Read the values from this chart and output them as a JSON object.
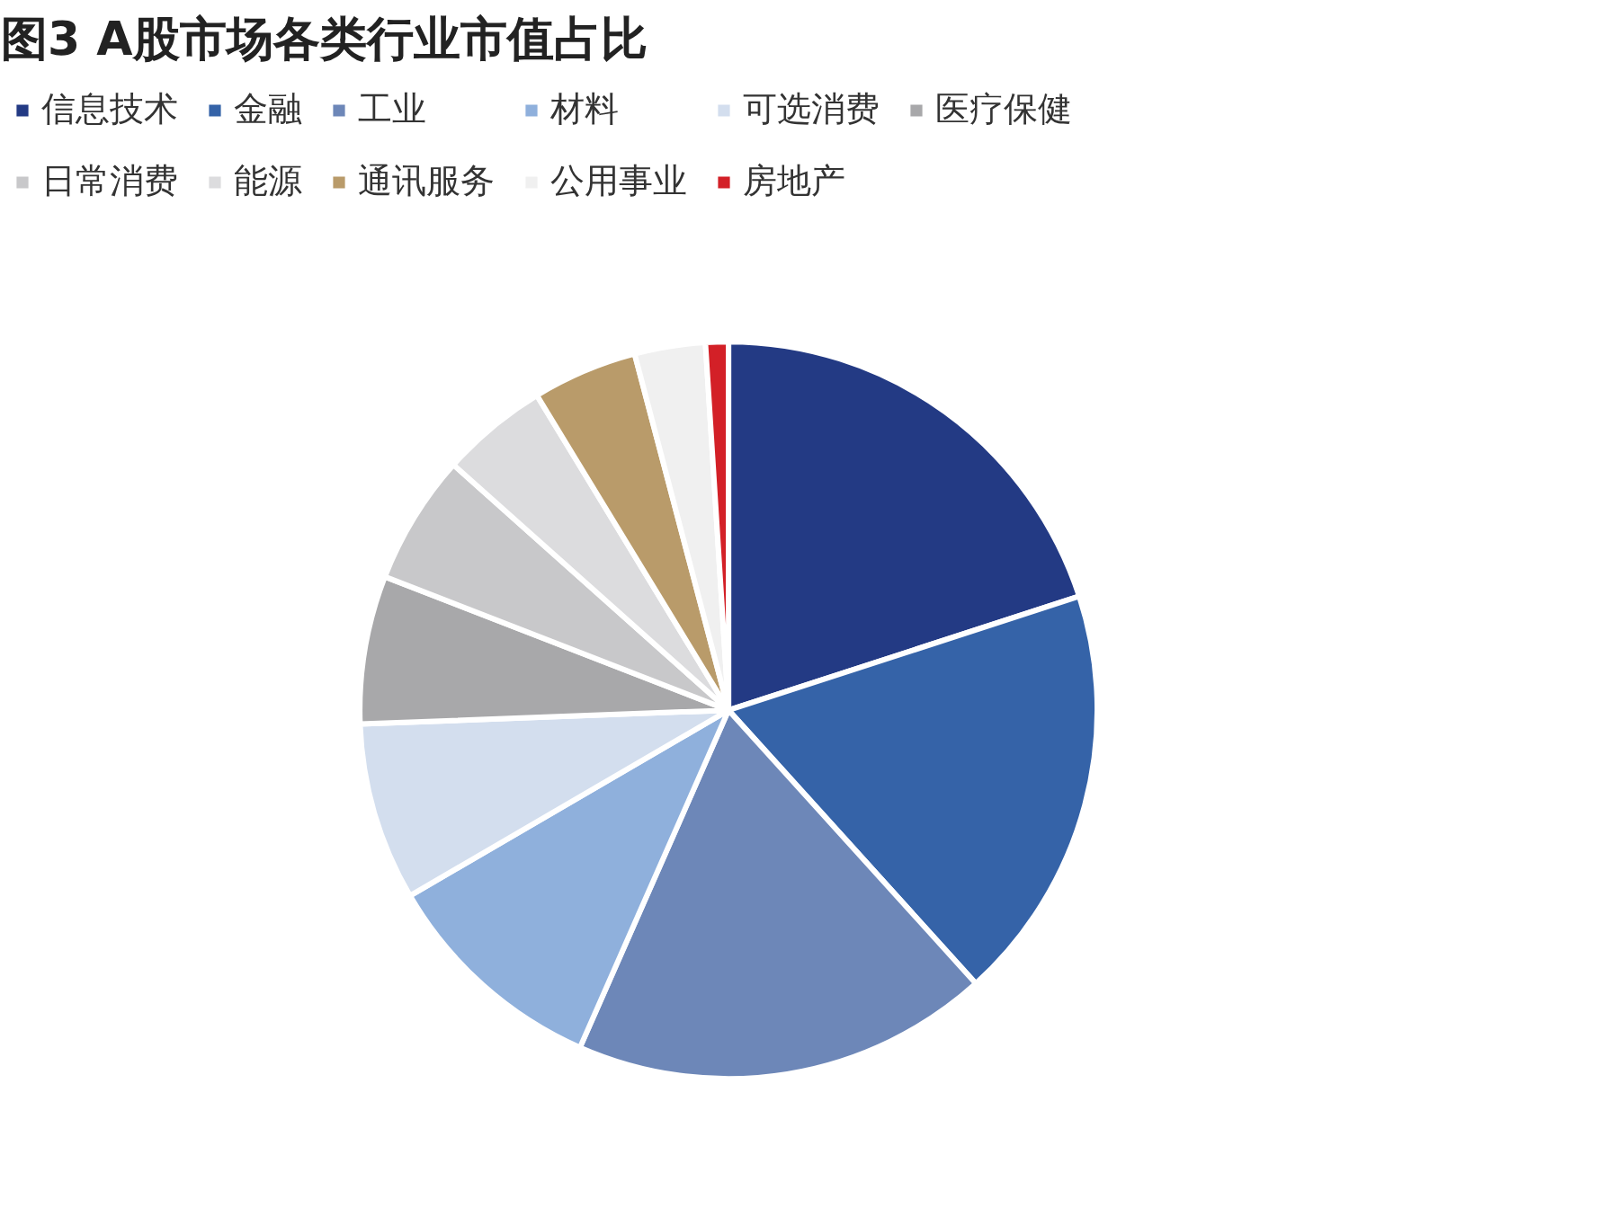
{
  "chart_data": {
    "type": "pie",
    "title": "图3  A股市场各类行业市值占比",
    "categories": [
      "信息技术",
      "金融",
      "工业",
      "材料",
      "可选消费",
      "医疗保健",
      "日常消费",
      "能源",
      "通讯服务",
      "公用事业",
      "房地产"
    ],
    "values": [
      20.0,
      18.3,
      18.3,
      10.0,
      7.8,
      6.5,
      5.7,
      4.7,
      4.6,
      3.1,
      1.0
    ],
    "colors": [
      "#233a84",
      "#3563a8",
      "#6d87b8",
      "#8fb0dc",
      "#d3deee",
      "#a8a8aa",
      "#c8c8ca",
      "#dcdcde",
      "#b99b6a",
      "#f0f0f0",
      "#d32027"
    ],
    "legend": "top"
  }
}
